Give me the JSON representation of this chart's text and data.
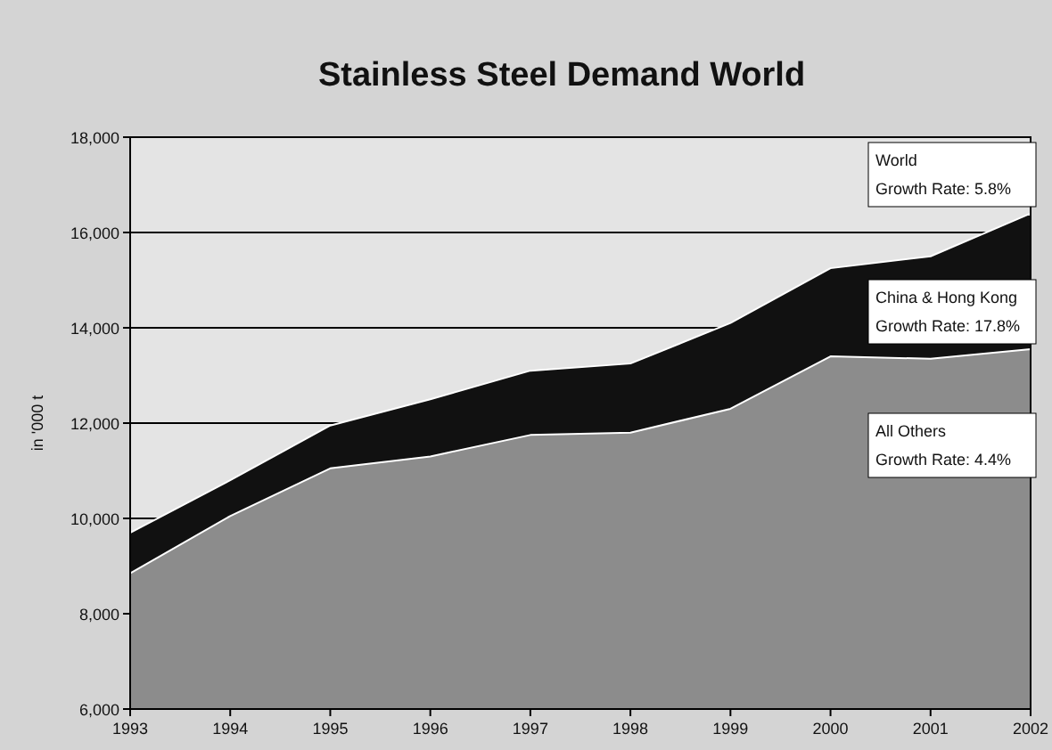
{
  "chart_data": {
    "type": "area",
    "title": "Stainless Steel Demand World",
    "ylabel": "in '000 t",
    "x": [
      1993,
      1994,
      1995,
      1996,
      1997,
      1998,
      1999,
      2000,
      2001,
      2002
    ],
    "xlim": [
      1993,
      2002
    ],
    "xticks": [
      1993,
      1994,
      1995,
      1996,
      1997,
      1998,
      1999,
      2000,
      2001,
      2002
    ],
    "ylim": [
      6000,
      18000
    ],
    "yticks": [
      {
        "value": 6000,
        "label": "6,000"
      },
      {
        "value": 8000,
        "label": "8,000"
      },
      {
        "value": 10000,
        "label": "10,000"
      },
      {
        "value": 12000,
        "label": "12,000"
      },
      {
        "value": 14000,
        "label": "14,000"
      },
      {
        "value": 16000,
        "label": "16,000"
      },
      {
        "value": 18000,
        "label": "18,000"
      }
    ],
    "grid": "y",
    "series": [
      {
        "color": "#111111",
        "values": [
          9700,
          10800,
          11950,
          12500,
          13100,
          13250,
          14100,
          15250,
          15500,
          16400
        ]
      },
      {
        "name": "All Others",
        "color": "#8c8c8c",
        "values": [
          8850,
          10050,
          11050,
          11300,
          11750,
          11800,
          12300,
          13400,
          13350,
          13550
        ]
      }
    ],
    "annotations": [
      "World",
      "Growth Rate: 5.8%",
      "China & Hong Kong",
      "Growth Rate: 17.8%",
      "Growth Rate: 4.4%"
    ]
  }
}
